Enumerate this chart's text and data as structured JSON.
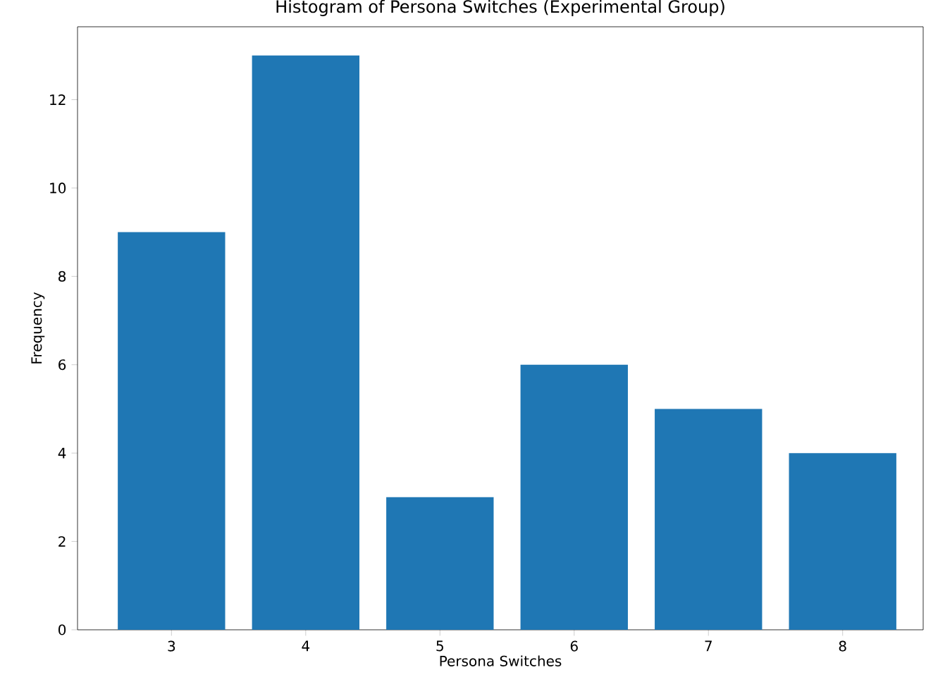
{
  "chart_data": {
    "type": "bar",
    "title": "Histogram of Persona Switches (Experimental Group)",
    "xlabel": "Persona Switches",
    "ylabel": "Frequency",
    "categories": [
      "3",
      "4",
      "5",
      "6",
      "7",
      "8"
    ],
    "values": [
      9,
      13,
      3,
      6,
      5,
      4
    ],
    "color": "#1f77b4",
    "ylim": [
      0,
      13.65
    ],
    "yticks": [
      0,
      2,
      4,
      6,
      8,
      10,
      12
    ],
    "grid": false
  }
}
